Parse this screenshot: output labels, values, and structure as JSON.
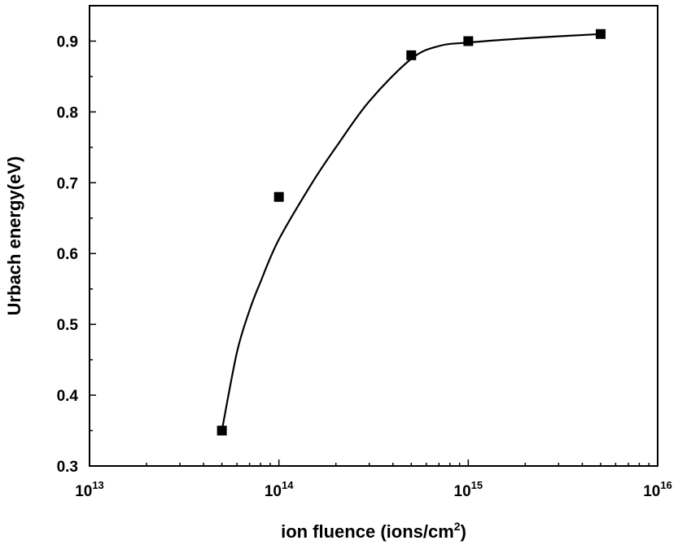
{
  "chart_data": {
    "type": "scatter",
    "title": "",
    "xlabel": "ion fluence (ions/cm",
    "xlabel_sup": "2",
    "xlabel_close": ")",
    "ylabel": "Urbach energy(eV)",
    "xscale": "log",
    "xlim": [
      10000000000000.0,
      1e+16
    ],
    "ylim": [
      0.3,
      0.95
    ],
    "grid": false,
    "legend": "none",
    "x_ticks": [
      {
        "value": 10000000000000.0,
        "base": "10",
        "exp": "13"
      },
      {
        "value": 100000000000000.0,
        "base": "10",
        "exp": "14"
      },
      {
        "value": 1000000000000000.0,
        "base": "10",
        "exp": "15"
      },
      {
        "value": 1e+16,
        "base": "10",
        "exp": "16"
      }
    ],
    "y_ticks": [
      {
        "value": 0.3,
        "label": "0.3"
      },
      {
        "value": 0.4,
        "label": "0.4"
      },
      {
        "value": 0.5,
        "label": "0.5"
      },
      {
        "value": 0.6,
        "label": "0.6"
      },
      {
        "value": 0.7,
        "label": "0.7"
      },
      {
        "value": 0.8,
        "label": "0.8"
      },
      {
        "value": 0.9,
        "label": "0.9"
      }
    ],
    "series": [
      {
        "marker": "square",
        "color": "#000000",
        "x": [
          50000000000000.0,
          100000000000000.0,
          500000000000000.0,
          1000000000000000.0,
          5000000000000000.0
        ],
        "y": [
          0.35,
          0.68,
          0.88,
          0.9,
          0.91
        ]
      }
    ],
    "fit_line": {
      "color": "#000000",
      "x": [
        50000000000000.0,
        60000000000000.0,
        70000000000000.0,
        80000000000000.0,
        100000000000000.0,
        150000000000000.0,
        200000000000000.0,
        300000000000000.0,
        500000000000000.0,
        700000000000000.0,
        1000000000000000.0,
        2000000000000000.0,
        5000000000000000.0
      ],
      "y": [
        0.35,
        0.46,
        0.52,
        0.56,
        0.62,
        0.7,
        0.75,
        0.815,
        0.875,
        0.893,
        0.898,
        0.904,
        0.91
      ]
    }
  }
}
